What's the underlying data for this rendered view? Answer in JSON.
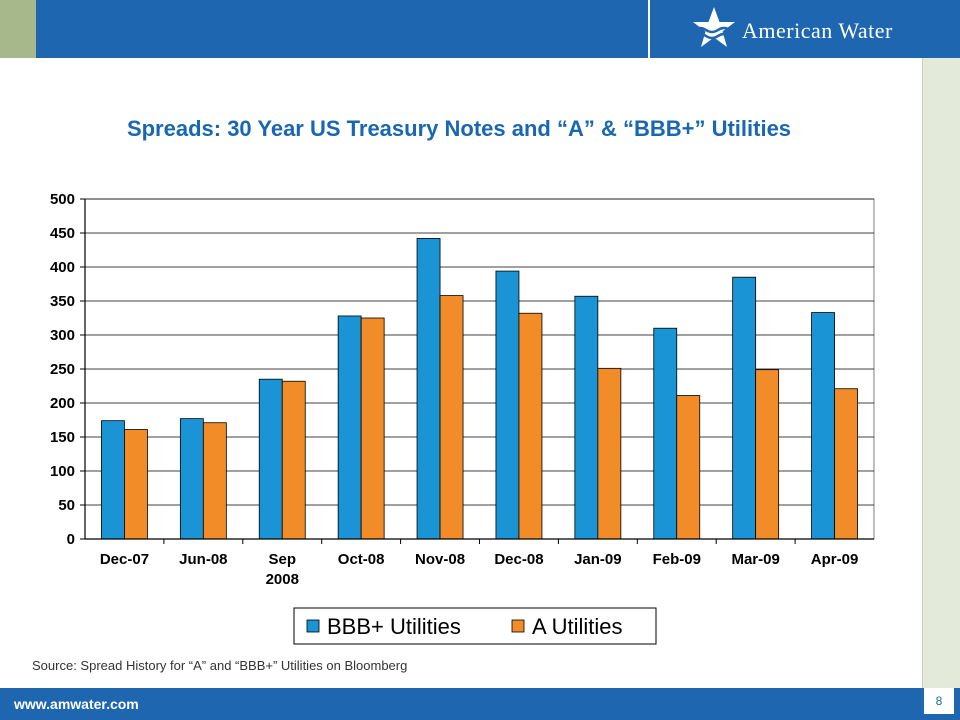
{
  "header": {
    "logo_text": "American Water"
  },
  "title": "Spreads: 30 Year US Treasury Notes and  “A” & “BBB+” Utilities",
  "source": "Source: Spread History for “A” and “BBB+” Utilities on Bloomberg",
  "footer": {
    "url": "www.amwater.com",
    "page_number": "8"
  },
  "colors": {
    "bbb": "#1a94d4",
    "a": "#f28c28",
    "brand_blue": "#1e66b0",
    "title_blue": "#1a67b1"
  },
  "chart_data": {
    "type": "bar",
    "categories": [
      "Dec-07",
      "Jun-08",
      "Sep\n2008",
      "Oct-08",
      "Nov-08",
      "Dec-08",
      "Jan-09",
      "Feb-09",
      "Mar-09",
      "Apr-09"
    ],
    "series": [
      {
        "name": "BBB+ Utilities",
        "values": [
          174,
          177,
          235,
          328,
          442,
          394,
          357,
          310,
          385,
          333
        ]
      },
      {
        "name": "A Utilities",
        "values": [
          161,
          171,
          232,
          325,
          358,
          332,
          251,
          211,
          249,
          221
        ]
      }
    ],
    "ylim": [
      0,
      500
    ],
    "yticks": [
      0,
      50,
      100,
      150,
      200,
      250,
      300,
      350,
      400,
      450,
      500
    ],
    "grid": true,
    "legend": "bottom"
  }
}
